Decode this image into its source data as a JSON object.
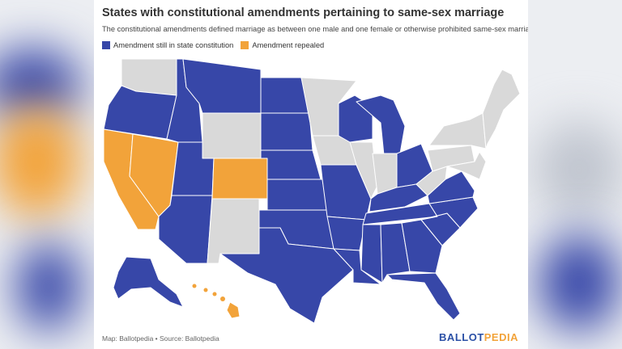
{
  "title": "States with constitutional amendments pertaining to same-sex marriage",
  "subtitle": "The constitutional amendments defined marriage as between one male and one female or otherwise prohibited same-sex marriage.",
  "legend": [
    {
      "label": "Amendment still in state constitution",
      "color": "#3747a8"
    },
    {
      "label": "Amendment repealed",
      "color": "#f2a33a"
    }
  ],
  "no_amendment_color": "#d9d9d9",
  "footer": {
    "source": "Map: Ballotpedia • Source: Ballotpedia"
  },
  "brand": {
    "part1": "BALLOT",
    "part2": "PEDIA"
  },
  "states": {
    "WA": "none",
    "OR": "still",
    "CA": "repealed",
    "NV": "repealed",
    "ID": "still",
    "MT": "still",
    "WY": "none",
    "UT": "still",
    "AZ": "still",
    "CO": "repealed",
    "NM": "none",
    "ND": "still",
    "SD": "still",
    "NE": "still",
    "KS": "still",
    "OK": "still",
    "TX": "still",
    "MN": "none",
    "IA": "none",
    "MO": "still",
    "AR": "still",
    "LA": "still",
    "WI": "still",
    "IL": "none",
    "MI": "still",
    "IN": "none",
    "OH": "still",
    "KY": "still",
    "TN": "still",
    "MS": "still",
    "AL": "still",
    "GA": "still",
    "FL": "still",
    "SC": "still",
    "NC": "still",
    "VA": "still",
    "WV": "none",
    "PA": "none",
    "NY": "none",
    "NE_REGION": "none",
    "MD_DE_NJ": "none",
    "AK": "still",
    "HI": "repealed"
  }
}
